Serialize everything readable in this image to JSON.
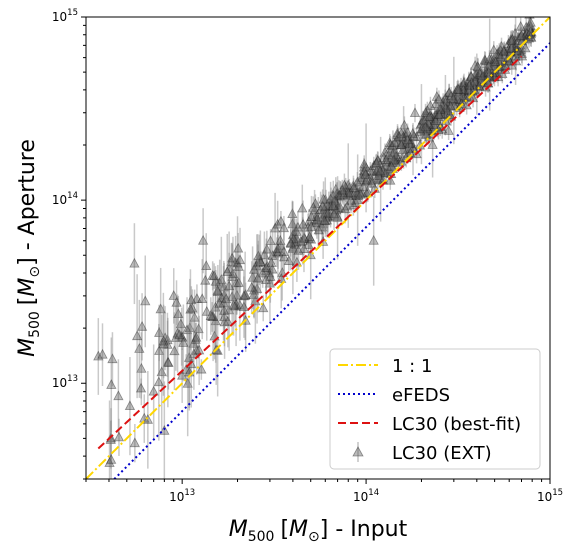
{
  "chart_data": {
    "type": "scatter",
    "title": "",
    "xlabel": {
      "var": "M",
      "sub": "500",
      "unit_open": "[",
      "unit_var": "M",
      "unit_sub": "⊙",
      "unit_close": "]",
      "suffix": " - Input"
    },
    "ylabel": {
      "var": "M",
      "sub": "500",
      "unit_open": "[",
      "unit_var": "M",
      "unit_sub": "⊙",
      "unit_close": "]",
      "suffix": " - Aperture"
    },
    "xscale": "log",
    "yscale": "log",
    "xlim": [
      3000000000000.0,
      1000000000000000.0
    ],
    "ylim": [
      3000000000000.0,
      1000000000000000.0
    ],
    "xticks": [
      {
        "base": "10",
        "exp": "13",
        "value": 10000000000000.0
      },
      {
        "base": "10",
        "exp": "14",
        "value": 100000000000000.0
      },
      {
        "base": "10",
        "exp": "15",
        "value": 1000000000000000.0
      }
    ],
    "yticks": [
      {
        "base": "10",
        "exp": "13",
        "value": 10000000000000.0
      },
      {
        "base": "10",
        "exp": "14",
        "value": 100000000000000.0
      },
      {
        "base": "10",
        "exp": "15",
        "value": 1000000000000000.0
      }
    ],
    "grid": false,
    "legend_position": "lower-right",
    "series": [
      {
        "name": "1 : 1",
        "kind": "line",
        "style": "dashdot",
        "color": "#ffd700",
        "x": [
          3000000000000.0,
          1000000000000000.0
        ],
        "y": [
          3000000000000.0,
          1000000000000000.0
        ]
      },
      {
        "name": "eFEDS",
        "kind": "line",
        "style": "dotted",
        "color": "#0000cc",
        "x": [
          3000000000000.0,
          1000000000000000.0
        ],
        "y": [
          2100000000000.0,
          720000000000000.0
        ]
      },
      {
        "name": "LC30 (best-fit)",
        "kind": "line",
        "style": "dashed",
        "color": "#dd1111",
        "x": [
          3500000000000.0,
          700000000000000.0
        ],
        "y": [
          4400000000000.0,
          610000000000000.0
        ]
      },
      {
        "name": "LC30 (EXT)",
        "kind": "scatter",
        "marker": "triangle",
        "color": "#666666",
        "sample_points": [
          [
            3500000000000.0,
            14000000000000.0
          ],
          [
            4100000000000.0,
            5000000000000.0
          ],
          [
            4500000000000.0,
            8500000000000.0
          ],
          [
            5200000000000.0,
            7500000000000.0
          ],
          [
            5500000000000.0,
            45000000000000.0
          ],
          [
            6000000000000.0,
            12000000000000.0
          ],
          [
            6300000000000.0,
            28000000000000.0
          ],
          [
            7000000000000.0,
            9000000000000.0
          ],
          [
            7500000000000.0,
            15000000000000.0
          ],
          [
            8000000000000.0,
            5500000000000.0
          ],
          [
            9000000000000.0,
            30000000000000.0
          ],
          [
            10000000000000.0,
            11000000000000.0
          ],
          [
            11000000000000.0,
            20000000000000.0
          ],
          [
            12000000000000.0,
            15000000000000.0
          ],
          [
            13000000000000.0,
            60000000000000.0
          ],
          [
            15000000000000.0,
            18000000000000.0
          ],
          [
            16000000000000.0,
            35000000000000.0
          ],
          [
            18000000000000.0,
            25000000000000.0
          ],
          [
            20000000000000.0,
            45000000000000.0
          ],
          [
            22000000000000.0,
            30000000000000.0
          ],
          [
            25000000000000.0,
            28000000000000.0
          ],
          [
            28000000000000.0,
            50000000000000.0
          ],
          [
            30000000000000.0,
            35000000000000.0
          ],
          [
            32000000000000.0,
            70000000000000.0
          ],
          [
            35000000000000.0,
            40000000000000.0
          ],
          [
            40000000000000.0,
            55000000000000.0
          ],
          [
            45000000000000.0,
            90000000000000.0
          ],
          [
            50000000000000.0,
            50000000000000.0
          ],
          [
            55000000000000.0,
            75000000000000.0
          ],
          [
            60000000000000.0,
            100000000000000.0
          ],
          [
            70000000000000.0,
            80000000000000.0
          ],
          [
            80000000000000.0,
            120000000000000.0
          ],
          [
            90000000000000.0,
            100000000000000.0
          ],
          [
            100000000000000.0,
            150000000000000.0
          ],
          [
            110000000000000.0,
            60000000000000.0
          ],
          [
            120000000000000.0,
            130000000000000.0
          ],
          [
            140000000000000.0,
            180000000000000.0
          ],
          [
            160000000000000.0,
            220000000000000.0
          ],
          [
            180000000000000.0,
            190000000000000.0
          ],
          [
            200000000000000.0,
            260000000000000.0
          ],
          [
            230000000000000.0,
            200000000000000.0
          ],
          [
            270000000000000.0,
            330000000000000.0
          ],
          [
            300000000000000.0,
            350000000000000.0
          ],
          [
            400000000000000.0,
            430000000000000.0
          ],
          [
            470000000000000.0,
            550000000000000.0
          ],
          [
            650000000000000.0,
            680000000000000.0
          ]
        ]
      }
    ]
  }
}
